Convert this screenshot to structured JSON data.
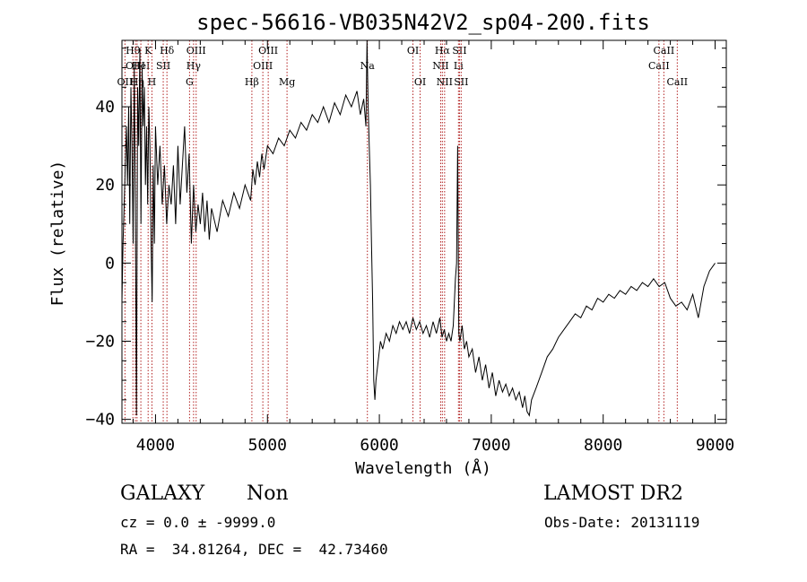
{
  "chart_data": {
    "type": "line",
    "title": "spec-56616-VB035N42V2_sp04-200.fits",
    "xlabel": "Wavelength (Å)",
    "ylabel": "Flux (relative)",
    "xlim": [
      3700,
      9100
    ],
    "ylim": [
      -41,
      57
    ],
    "x_ticks": [
      4000,
      5000,
      6000,
      7000,
      8000,
      9000
    ],
    "x_tick_labels": [
      "4000",
      "5000",
      "6000",
      "7000",
      "8000",
      "9000"
    ],
    "y_ticks": [
      -40,
      -20,
      0,
      20,
      40
    ],
    "y_tick_labels": [
      "−40",
      "−20",
      "0",
      "20",
      "40"
    ],
    "grid": false,
    "line_color": "#000000",
    "marker_color": "#b22222",
    "series_points": [
      [
        3700,
        -10
      ],
      [
        3710,
        5
      ],
      [
        3720,
        15
      ],
      [
        3730,
        25
      ],
      [
        3740,
        35
      ],
      [
        3750,
        20
      ],
      [
        3760,
        40
      ],
      [
        3770,
        10
      ],
      [
        3780,
        45
      ],
      [
        3790,
        30
      ],
      [
        3800,
        5
      ],
      [
        3810,
        50
      ],
      [
        3820,
        15
      ],
      [
        3830,
        -39
      ],
      [
        3840,
        45
      ],
      [
        3850,
        30
      ],
      [
        3860,
        55
      ],
      [
        3870,
        10
      ],
      [
        3880,
        50
      ],
      [
        3890,
        35
      ],
      [
        3900,
        45
      ],
      [
        3910,
        20
      ],
      [
        3920,
        35
      ],
      [
        3930,
        15
      ],
      [
        3940,
        40
      ],
      [
        3950,
        30
      ],
      [
        3960,
        5
      ],
      [
        3970,
        -10
      ],
      [
        3980,
        25
      ],
      [
        3990,
        5
      ],
      [
        4000,
        35
      ],
      [
        4020,
        20
      ],
      [
        4040,
        30
      ],
      [
        4060,
        15
      ],
      [
        4080,
        25
      ],
      [
        4100,
        10
      ],
      [
        4120,
        20
      ],
      [
        4140,
        15
      ],
      [
        4160,
        25
      ],
      [
        4180,
        10
      ],
      [
        4200,
        30
      ],
      [
        4220,
        15
      ],
      [
        4240,
        25
      ],
      [
        4260,
        35
      ],
      [
        4280,
        18
      ],
      [
        4300,
        28
      ],
      [
        4320,
        5
      ],
      [
        4340,
        20
      ],
      [
        4360,
        8
      ],
      [
        4380,
        15
      ],
      [
        4400,
        10
      ],
      [
        4420,
        18
      ],
      [
        4440,
        8
      ],
      [
        4460,
        16
      ],
      [
        4480,
        6
      ],
      [
        4500,
        14
      ],
      [
        4550,
        8
      ],
      [
        4600,
        16
      ],
      [
        4650,
        12
      ],
      [
        4700,
        18
      ],
      [
        4750,
        14
      ],
      [
        4800,
        20
      ],
      [
        4850,
        16
      ],
      [
        4870,
        24
      ],
      [
        4890,
        20
      ],
      [
        4910,
        26
      ],
      [
        4930,
        22
      ],
      [
        4950,
        28
      ],
      [
        4970,
        24
      ],
      [
        5000,
        30
      ],
      [
        5050,
        28
      ],
      [
        5100,
        32
      ],
      [
        5150,
        30
      ],
      [
        5200,
        34
      ],
      [
        5250,
        32
      ],
      [
        5300,
        36
      ],
      [
        5350,
        34
      ],
      [
        5400,
        38
      ],
      [
        5450,
        36
      ],
      [
        5500,
        40
      ],
      [
        5550,
        36
      ],
      [
        5600,
        41
      ],
      [
        5650,
        38
      ],
      [
        5700,
        43
      ],
      [
        5750,
        40
      ],
      [
        5800,
        44
      ],
      [
        5830,
        38
      ],
      [
        5860,
        42
      ],
      [
        5880,
        35
      ],
      [
        5890,
        57
      ],
      [
        5900,
        40
      ],
      [
        5910,
        30
      ],
      [
        5920,
        20
      ],
      [
        5930,
        5
      ],
      [
        5940,
        -10
      ],
      [
        5950,
        -30
      ],
      [
        5960,
        -35
      ],
      [
        5970,
        -30
      ],
      [
        5990,
        -25
      ],
      [
        6010,
        -20
      ],
      [
        6030,
        -22
      ],
      [
        6060,
        -18
      ],
      [
        6090,
        -20
      ],
      [
        6120,
        -16
      ],
      [
        6150,
        -18
      ],
      [
        6180,
        -15
      ],
      [
        6210,
        -17
      ],
      [
        6240,
        -15
      ],
      [
        6270,
        -18
      ],
      [
        6300,
        -14
      ],
      [
        6330,
        -17
      ],
      [
        6360,
        -15
      ],
      [
        6390,
        -18
      ],
      [
        6420,
        -16
      ],
      [
        6450,
        -19
      ],
      [
        6480,
        -15
      ],
      [
        6510,
        -18
      ],
      [
        6540,
        -14
      ],
      [
        6560,
        -19
      ],
      [
        6580,
        -17
      ],
      [
        6600,
        -20
      ],
      [
        6620,
        -18
      ],
      [
        6640,
        -20
      ],
      [
        6660,
        -16
      ],
      [
        6680,
        -4
      ],
      [
        6690,
        0
      ],
      [
        6700,
        30
      ],
      [
        6710,
        -18
      ],
      [
        6720,
        -20
      ],
      [
        6740,
        -16
      ],
      [
        6760,
        -22
      ],
      [
        6780,
        -20
      ],
      [
        6800,
        -24
      ],
      [
        6830,
        -22
      ],
      [
        6860,
        -28
      ],
      [
        6890,
        -24
      ],
      [
        6920,
        -30
      ],
      [
        6950,
        -26
      ],
      [
        6980,
        -32
      ],
      [
        7010,
        -28
      ],
      [
        7040,
        -34
      ],
      [
        7070,
        -30
      ],
      [
        7100,
        -33
      ],
      [
        7130,
        -31
      ],
      [
        7160,
        -34
      ],
      [
        7190,
        -32
      ],
      [
        7220,
        -35
      ],
      [
        7250,
        -33
      ],
      [
        7280,
        -37
      ],
      [
        7300,
        -34
      ],
      [
        7320,
        -38
      ],
      [
        7340,
        -39
      ],
      [
        7360,
        -35
      ],
      [
        7400,
        -32
      ],
      [
        7450,
        -28
      ],
      [
        7500,
        -24
      ],
      [
        7550,
        -22
      ],
      [
        7600,
        -19
      ],
      [
        7650,
        -17
      ],
      [
        7700,
        -15
      ],
      [
        7750,
        -13
      ],
      [
        7800,
        -14
      ],
      [
        7850,
        -11
      ],
      [
        7900,
        -12
      ],
      [
        7950,
        -9
      ],
      [
        8000,
        -10
      ],
      [
        8050,
        -8
      ],
      [
        8100,
        -9
      ],
      [
        8150,
        -7
      ],
      [
        8200,
        -8
      ],
      [
        8250,
        -6
      ],
      [
        8300,
        -7
      ],
      [
        8350,
        -5
      ],
      [
        8400,
        -6
      ],
      [
        8450,
        -4
      ],
      [
        8500,
        -6
      ],
      [
        8550,
        -5
      ],
      [
        8600,
        -9
      ],
      [
        8650,
        -11
      ],
      [
        8700,
        -10
      ],
      [
        8750,
        -12
      ],
      [
        8800,
        -8
      ],
      [
        8850,
        -14
      ],
      [
        8900,
        -6
      ],
      [
        8950,
        -2
      ],
      [
        9000,
        0
      ]
    ],
    "line_markers": [
      {
        "wl": 3727,
        "label": "OII",
        "row": 3
      },
      {
        "wl": 3798,
        "label": "Hθ",
        "row": 1
      },
      {
        "wl": 3820,
        "label": "OIII",
        "row": 2
      },
      {
        "wl": 3835,
        "label": "Hη",
        "row": 3
      },
      {
        "wl": 3869,
        "label": "HeI",
        "row": 2
      },
      {
        "wl": 3934,
        "label": "K",
        "row": 1
      },
      {
        "wl": 3968,
        "label": "H",
        "row": 3
      },
      {
        "wl": 4069,
        "label": "SII",
        "row": 2
      },
      {
        "wl": 4102,
        "label": "Hδ",
        "row": 1
      },
      {
        "wl": 4304,
        "label": "G",
        "row": 3
      },
      {
        "wl": 4340,
        "label": "Hγ",
        "row": 2
      },
      {
        "wl": 4363,
        "label": "OIII",
        "row": 1
      },
      {
        "wl": 4861,
        "label": "Hβ",
        "row": 3
      },
      {
        "wl": 4959,
        "label": "OIII",
        "row": 2
      },
      {
        "wl": 5007,
        "label": "OIII",
        "row": 1
      },
      {
        "wl": 5175,
        "label": "Mg",
        "row": 3
      },
      {
        "wl": 5893,
        "label": "Na",
        "row": 2
      },
      {
        "wl": 6300,
        "label": "OI",
        "row": 1
      },
      {
        "wl": 6364,
        "label": "OI",
        "row": 3
      },
      {
        "wl": 6548,
        "label": "NII",
        "row": 2
      },
      {
        "wl": 6563,
        "label": "Hα",
        "row": 1
      },
      {
        "wl": 6583,
        "label": "NII",
        "row": 3
      },
      {
        "wl": 6707,
        "label": "Li",
        "row": 2
      },
      {
        "wl": 6716,
        "label": "SII",
        "row": 1
      },
      {
        "wl": 6731,
        "label": "SII",
        "row": 3
      },
      {
        "wl": 8498,
        "label": "CaII",
        "row": 2
      },
      {
        "wl": 8542,
        "label": "CaII",
        "row": 1
      },
      {
        "wl": 8662,
        "label": "CaII",
        "row": 3
      }
    ]
  },
  "info": {
    "object_class": "GALAXY",
    "subclass": "Non",
    "survey": "LAMOST DR2",
    "cz_line": "cz = 0.0 ± -9999.0",
    "obs_date_line": "Obs-Date: 20131119",
    "radec_line": "RA =  34.81264, DEC =  42.73460"
  }
}
